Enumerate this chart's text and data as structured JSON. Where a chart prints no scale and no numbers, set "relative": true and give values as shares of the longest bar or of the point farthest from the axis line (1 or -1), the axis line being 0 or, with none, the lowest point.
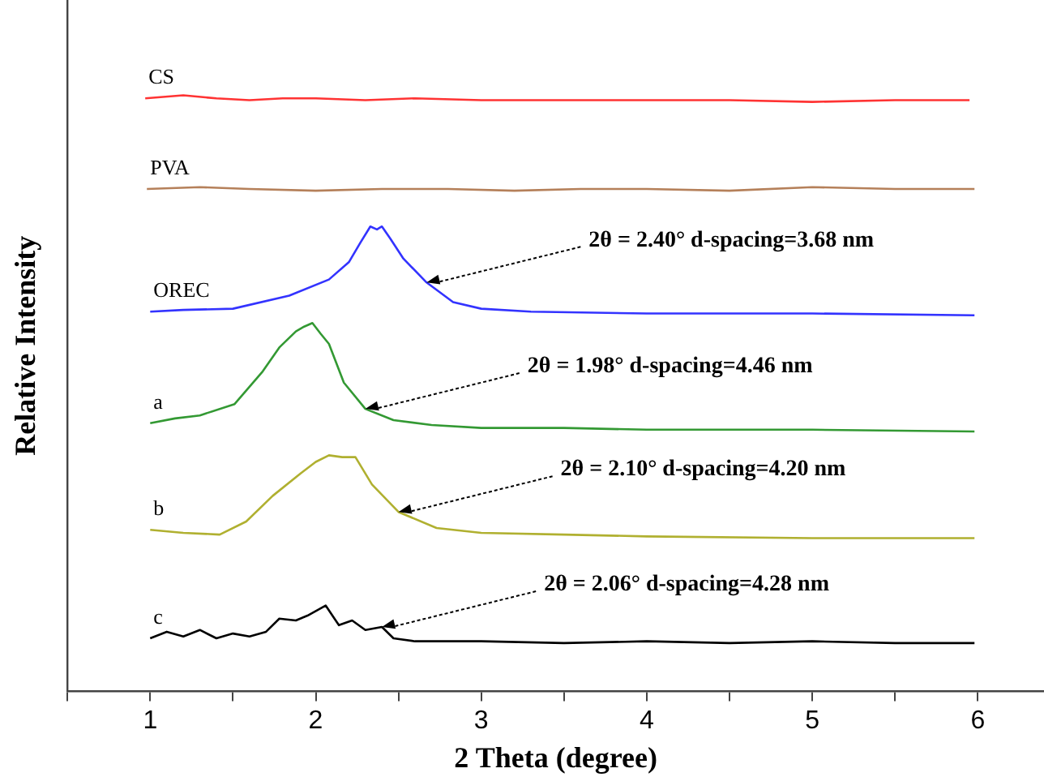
{
  "chart_data": {
    "type": "line",
    "xlabel": "2 Theta (degree)",
    "ylabel": "Relative Intensity",
    "relative": true,
    "xlim": [
      0.5,
      6.4
    ],
    "xticks": [
      {
        "value": 0.5,
        "label": null
      },
      1,
      {
        "value": 1.5,
        "label": null
      },
      2,
      {
        "value": 2.5,
        "label": null
      },
      3,
      {
        "value": 3.5,
        "label": null
      },
      4,
      {
        "value": 4.5,
        "label": null
      },
      5,
      {
        "value": 5.5,
        "label": null
      },
      6
    ],
    "grid": false,
    "legend": false,
    "marker": "none",
    "line_style": "solid",
    "series": [
      {
        "name": "CS",
        "color": "#ff3333",
        "x": [
          0.97,
          1.2,
          1.4,
          1.6,
          1.8,
          2.0,
          2.3,
          2.6,
          3.0,
          3.5,
          4.0,
          4.5,
          5.0,
          5.5,
          5.95
        ],
        "values": [
          0.995,
          1.0,
          0.995,
          0.992,
          0.995,
          0.995,
          0.992,
          0.995,
          0.992,
          0.992,
          0.992,
          0.992,
          0.989,
          0.992,
          0.992
        ]
      },
      {
        "name": "PVA",
        "color": "#b5805a",
        "x": [
          0.98,
          1.3,
          1.6,
          2.0,
          2.4,
          2.8,
          3.2,
          3.6,
          4.0,
          4.5,
          5.0,
          5.5,
          5.98
        ],
        "values": [
          0.843,
          0.846,
          0.843,
          0.84,
          0.843,
          0.843,
          0.84,
          0.843,
          0.843,
          0.84,
          0.846,
          0.843,
          0.843
        ]
      },
      {
        "name": "OREC",
        "color": "#3333ff",
        "x": [
          1.0,
          1.2,
          1.5,
          1.84,
          2.08,
          2.2,
          2.27,
          2.33,
          2.37,
          2.4,
          2.45,
          2.53,
          2.67,
          2.83,
          3.0,
          3.3,
          4.0,
          5.0,
          5.98
        ],
        "values": [
          0.637,
          0.64,
          0.642,
          0.664,
          0.691,
          0.72,
          0.753,
          0.78,
          0.775,
          0.78,
          0.76,
          0.726,
          0.686,
          0.653,
          0.642,
          0.637,
          0.634,
          0.634,
          0.631
        ]
      },
      {
        "name": "a",
        "color": "#339933",
        "x": [
          1.0,
          1.15,
          1.3,
          1.51,
          1.68,
          1.78,
          1.88,
          1.93,
          1.98,
          2.03,
          2.08,
          2.17,
          2.3,
          2.47,
          2.7,
          3.0,
          3.5,
          4.0,
          5.0,
          5.98
        ],
        "values": [
          0.45,
          0.458,
          0.463,
          0.482,
          0.537,
          0.577,
          0.604,
          0.612,
          0.618,
          0.6,
          0.583,
          0.518,
          0.474,
          0.455,
          0.447,
          0.442,
          0.442,
          0.439,
          0.439,
          0.436
        ]
      },
      {
        "name": "b",
        "color": "#b0b030",
        "x": [
          1.0,
          1.2,
          1.42,
          1.58,
          1.74,
          1.91,
          2.0,
          2.08,
          2.16,
          2.24,
          2.34,
          2.5,
          2.73,
          3.0,
          3.5,
          4.0,
          5.0,
          5.98
        ],
        "values": [
          0.271,
          0.266,
          0.263,
          0.285,
          0.328,
          0.366,
          0.385,
          0.396,
          0.393,
          0.393,
          0.347,
          0.301,
          0.274,
          0.266,
          0.263,
          0.26,
          0.257,
          0.257
        ]
      },
      {
        "name": "c",
        "color": "#000000",
        "x": [
          1.0,
          1.1,
          1.2,
          1.3,
          1.4,
          1.5,
          1.6,
          1.7,
          1.78,
          1.88,
          1.95,
          2.06,
          2.14,
          2.22,
          2.3,
          2.4,
          2.47,
          2.6,
          3.0,
          3.5,
          4.0,
          4.5,
          5.0,
          5.5,
          5.98
        ],
        "values": [
          0.089,
          0.1,
          0.092,
          0.103,
          0.089,
          0.097,
          0.092,
          0.1,
          0.122,
          0.119,
          0.127,
          0.144,
          0.111,
          0.119,
          0.103,
          0.108,
          0.089,
          0.084,
          0.084,
          0.081,
          0.084,
          0.081,
          0.084,
          0.081,
          0.081
        ]
      }
    ],
    "annotations": [
      {
        "text": "2θ = 2.40° d-spacing=3.68 nm",
        "x": 2.67,
        "y": 0.686
      },
      {
        "text": "2θ = 1.98° d-spacing=4.46 nm",
        "x": 2.3,
        "y": 0.474
      },
      {
        "text": "2θ = 2.10° d-spacing=4.20 nm",
        "x": 2.5,
        "y": 0.301
      },
      {
        "text": "2θ = 2.06° d-spacing=4.28 nm",
        "x": 2.4,
        "y": 0.108
      }
    ]
  }
}
